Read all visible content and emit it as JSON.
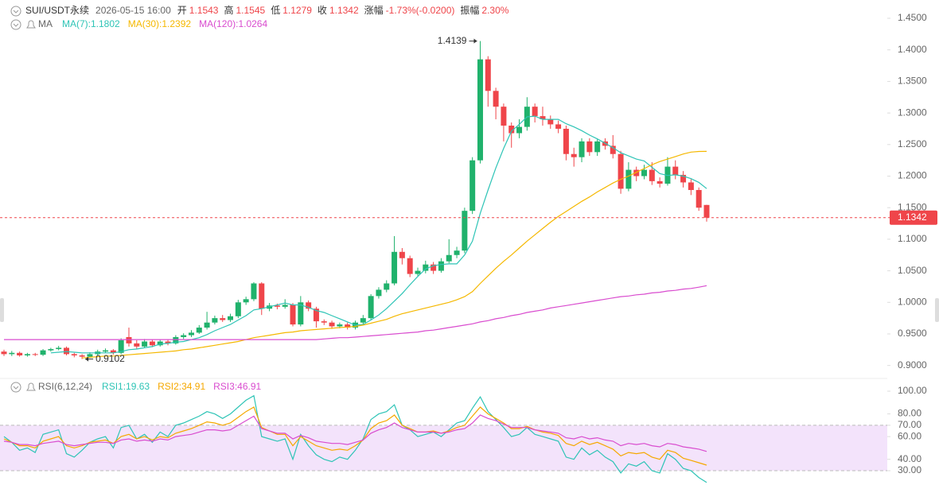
{
  "header": {
    "symbol": "SUI/USDT永续",
    "time": "2026-05-15 16:00",
    "fields": [
      {
        "label": "开",
        "value": "1.1543"
      },
      {
        "label": "高",
        "value": "1.1545"
      },
      {
        "label": "低",
        "value": "1.1279"
      },
      {
        "label": "收",
        "value": "1.1342"
      },
      {
        "label": "涨幅",
        "value": "-1.73%(-0.0200)"
      },
      {
        "label": "振幅",
        "value": "2.30%"
      }
    ]
  },
  "chart_data": [
    {
      "type": "candlestick",
      "indicator": "MA",
      "up_color": "#20b26c",
      "down_color": "#ef454a",
      "ylim": [
        0.887,
        1.479
      ],
      "yticks": [
        {
          "value": 0.9,
          "label": "0.9000"
        },
        {
          "value": 0.95,
          "label": "0.9500"
        },
        {
          "value": 1.0,
          "label": "1.0000"
        },
        {
          "value": 1.05,
          "label": "1.0500"
        },
        {
          "value": 1.1,
          "label": "1.1000"
        },
        {
          "value": 1.15,
          "label": "1.1500"
        },
        {
          "value": 1.2,
          "label": "1.2000"
        },
        {
          "value": 1.25,
          "label": "1.2500"
        },
        {
          "value": 1.3,
          "label": "1.3000"
        },
        {
          "value": 1.35,
          "label": "1.3500"
        },
        {
          "value": 1.4,
          "label": "1.4000"
        },
        {
          "value": 1.45,
          "label": "1.4500"
        }
      ],
      "current_price": 1.1342,
      "annotations": [
        1.4139,
        0.9102
      ],
      "candles": {
        "open": [
          0.922,
          0.918,
          0.92,
          0.916,
          0.918,
          0.917,
          0.924,
          0.926,
          0.928,
          0.918,
          0.916,
          0.914,
          0.918,
          0.922,
          0.924,
          0.92,
          0.945,
          0.935,
          0.93,
          0.938,
          0.932,
          0.938,
          0.935,
          0.945,
          0.948,
          0.952,
          0.96,
          0.968,
          0.975,
          0.972,
          0.978,
          1.0,
          1.005,
          1.03,
          0.99,
          0.995,
          0.993,
          0.996,
          0.965,
          1.0,
          0.99,
          0.97,
          0.968,
          0.962,
          0.965,
          0.96,
          0.968,
          0.975,
          1.01,
          1.02,
          1.03,
          1.08,
          1.07,
          1.045,
          1.05,
          1.06,
          1.05,
          1.065,
          1.075,
          1.082,
          1.145,
          1.225,
          1.385,
          1.335,
          1.31,
          1.28,
          1.268,
          1.278,
          1.31,
          1.295,
          1.29,
          1.282,
          1.275,
          1.235,
          1.23,
          1.255,
          1.238,
          1.255,
          1.248,
          1.235,
          1.18,
          1.21,
          1.2,
          1.21,
          1.192,
          1.188,
          1.215,
          1.202,
          1.19,
          1.178,
          1.1543
        ],
        "high": [
          0.925,
          0.923,
          0.922,
          0.92,
          0.92,
          0.926,
          0.928,
          0.931,
          0.93,
          0.92,
          0.918,
          0.921,
          0.925,
          0.927,
          0.926,
          0.943,
          0.96,
          0.94,
          0.942,
          0.941,
          0.941,
          0.941,
          0.948,
          0.951,
          0.956,
          0.964,
          0.985,
          0.979,
          0.98,
          0.982,
          1.004,
          1.009,
          1.032,
          1.032,
          0.999,
          0.998,
          1.005,
          0.999,
          1.01,
          1.003,
          0.993,
          0.973,
          0.971,
          0.968,
          0.968,
          0.971,
          0.98,
          1.013,
          1.024,
          1.035,
          1.105,
          1.086,
          1.074,
          1.055,
          1.066,
          1.064,
          1.07,
          1.1,
          1.088,
          1.15,
          1.23,
          1.4139,
          1.39,
          1.34,
          1.315,
          1.285,
          1.29,
          1.325,
          1.315,
          1.31,
          1.296,
          1.288,
          1.28,
          1.245,
          1.26,
          1.26,
          1.258,
          1.26,
          1.265,
          1.24,
          1.222,
          1.215,
          1.218,
          1.222,
          1.198,
          1.23,
          1.225,
          1.208,
          1.195,
          1.182,
          1.1545
        ],
        "low": [
          0.915,
          0.915,
          0.914,
          0.914,
          0.915,
          0.915,
          0.922,
          0.924,
          0.916,
          0.913,
          0.9102,
          0.912,
          0.916,
          0.92,
          0.917,
          0.918,
          0.93,
          0.926,
          0.928,
          0.929,
          0.93,
          0.932,
          0.933,
          0.942,
          0.945,
          0.95,
          0.957,
          0.965,
          0.969,
          0.969,
          0.975,
          0.996,
          1.002,
          0.98,
          0.986,
          0.989,
          0.99,
          0.962,
          0.962,
          0.986,
          0.96,
          0.964,
          0.958,
          0.959,
          0.957,
          0.957,
          0.965,
          0.972,
          1.006,
          1.016,
          1.027,
          1.06,
          1.04,
          1.042,
          1.046,
          1.045,
          1.047,
          1.062,
          1.07,
          1.078,
          1.14,
          1.22,
          1.31,
          1.29,
          1.255,
          1.245,
          1.26,
          1.272,
          1.285,
          1.28,
          1.275,
          1.268,
          1.225,
          1.215,
          1.222,
          1.232,
          1.232,
          1.242,
          1.228,
          1.172,
          1.176,
          1.192,
          1.195,
          1.186,
          1.182,
          1.185,
          1.195,
          1.182,
          1.17,
          1.145,
          1.1279
        ],
        "close": [
          0.918,
          0.92,
          0.916,
          0.918,
          0.917,
          0.924,
          0.926,
          0.928,
          0.918,
          0.916,
          0.914,
          0.918,
          0.922,
          0.924,
          0.92,
          0.94,
          0.935,
          0.93,
          0.938,
          0.932,
          0.938,
          0.935,
          0.945,
          0.948,
          0.952,
          0.96,
          0.968,
          0.975,
          0.972,
          0.978,
          1.0,
          1.005,
          1.03,
          0.99,
          0.995,
          0.993,
          0.996,
          0.965,
          1.0,
          0.99,
          0.97,
          0.968,
          0.962,
          0.965,
          0.96,
          0.968,
          0.975,
          1.01,
          1.02,
          1.03,
          1.08,
          1.07,
          1.045,
          1.05,
          1.06,
          1.05,
          1.065,
          1.075,
          1.082,
          1.145,
          1.225,
          1.385,
          1.335,
          1.31,
          1.28,
          1.268,
          1.278,
          1.31,
          1.295,
          1.29,
          1.282,
          1.275,
          1.235,
          1.23,
          1.255,
          1.238,
          1.255,
          1.248,
          1.235,
          1.18,
          1.21,
          1.2,
          1.21,
          1.192,
          1.188,
          1.215,
          1.202,
          1.19,
          1.178,
          1.15,
          1.1342
        ]
      },
      "series": [
        {
          "name": "MA(7):1.1802",
          "color": "#2ec4b6",
          "values": [
            null,
            null,
            null,
            null,
            null,
            null,
            0.92,
            0.921,
            0.922,
            0.921,
            0.92,
            0.92,
            0.92,
            0.92,
            0.92,
            0.922,
            0.925,
            0.926,
            0.928,
            0.93,
            0.934,
            0.935,
            0.937,
            0.938,
            0.941,
            0.944,
            0.949,
            0.955,
            0.96,
            0.965,
            0.972,
            0.979,
            0.988,
            0.99,
            0.993,
            0.996,
            0.999,
            0.996,
            0.996,
            0.992,
            0.987,
            0.984,
            0.979,
            0.974,
            0.969,
            0.964,
            0.965,
            0.972,
            0.98,
            0.99,
            1.002,
            1.014,
            1.028,
            1.041,
            1.053,
            1.058,
            1.06,
            1.061,
            1.061,
            1.075,
            1.097,
            1.141,
            1.178,
            1.213,
            1.244,
            1.271,
            1.282,
            1.294,
            1.295,
            1.29,
            1.29,
            1.29,
            1.283,
            1.278,
            1.272,
            1.265,
            1.259,
            1.252,
            1.245,
            1.237,
            1.232,
            1.227,
            1.224,
            1.214,
            1.204,
            1.201,
            1.202,
            1.2,
            1.196,
            1.19,
            1.1802
          ]
        },
        {
          "name": "MA(30):1.2392",
          "color": "#f5b800",
          "values": [
            null,
            null,
            null,
            null,
            null,
            null,
            null,
            null,
            null,
            null,
            0.912,
            0.913,
            0.914,
            0.915,
            0.915,
            0.916,
            0.917,
            0.918,
            0.919,
            0.92,
            0.921,
            0.922,
            0.923,
            0.925,
            0.926,
            0.928,
            0.93,
            0.932,
            0.934,
            0.936,
            0.938,
            0.941,
            0.944,
            0.946,
            0.948,
            0.95,
            0.952,
            0.953,
            0.955,
            0.956,
            0.957,
            0.958,
            0.959,
            0.96,
            0.961,
            0.962,
            0.964,
            0.967,
            0.97,
            0.973,
            0.978,
            0.982,
            0.985,
            0.988,
            0.991,
            0.994,
            0.997,
            1.0,
            1.004,
            1.009,
            1.017,
            1.03,
            1.042,
            1.054,
            1.065,
            1.075,
            1.086,
            1.097,
            1.107,
            1.117,
            1.127,
            1.136,
            1.144,
            1.152,
            1.16,
            1.167,
            1.175,
            1.182,
            1.189,
            1.195,
            1.2,
            1.206,
            1.212,
            1.218,
            1.223,
            1.227,
            1.231,
            1.235,
            1.238,
            1.239,
            1.2392
          ]
        },
        {
          "name": "MA(120):1.0264",
          "color": "#d94ccf",
          "values": [
            0.941,
            0.941,
            0.941,
            0.941,
            0.941,
            0.941,
            0.941,
            0.941,
            0.941,
            0.941,
            0.941,
            0.941,
            0.941,
            0.941,
            0.941,
            0.941,
            0.941,
            0.941,
            0.941,
            0.941,
            0.941,
            0.941,
            0.941,
            0.941,
            0.941,
            0.941,
            0.941,
            0.941,
            0.941,
            0.941,
            0.941,
            0.941,
            0.941,
            0.941,
            0.941,
            0.941,
            0.941,
            0.941,
            0.941,
            0.941,
            0.941,
            0.942,
            0.943,
            0.944,
            0.944,
            0.945,
            0.946,
            0.947,
            0.948,
            0.949,
            0.95,
            0.951,
            0.952,
            0.953,
            0.955,
            0.956,
            0.958,
            0.96,
            0.962,
            0.964,
            0.966,
            0.969,
            0.971,
            0.974,
            0.976,
            0.979,
            0.981,
            0.984,
            0.986,
            0.988,
            0.991,
            0.993,
            0.995,
            0.997,
            0.999,
            1.001,
            1.003,
            1.005,
            1.007,
            1.009,
            1.01,
            1.012,
            1.013,
            1.015,
            1.016,
            1.018,
            1.019,
            1.021,
            1.022,
            1.024,
            1.0264
          ]
        }
      ]
    },
    {
      "type": "line",
      "indicator": "RSI(6,12,24)",
      "ylim": [
        17.4,
        108.4
      ],
      "band": [
        30,
        70
      ],
      "band_color": "#f3e3fb",
      "yticks": [
        {
          "value": 30,
          "label": "30.00"
        },
        {
          "value": 40,
          "label": "40.00"
        },
        {
          "value": 60,
          "label": "60.00"
        },
        {
          "value": 70,
          "label": "70.00"
        },
        {
          "value": 80,
          "label": "80.00"
        },
        {
          "value": 100,
          "label": "100.00"
        }
      ],
      "series": [
        {
          "name": "RSI1:19.63",
          "color": "#2ec4b6",
          "values": [
            60,
            55,
            48,
            50,
            46,
            62,
            64,
            66,
            45,
            42,
            48,
            55,
            58,
            60,
            50,
            68,
            70,
            58,
            62,
            55,
            64,
            60,
            70,
            72,
            75,
            78,
            82,
            80,
            76,
            80,
            86,
            92,
            96,
            60,
            58,
            56,
            58,
            40,
            62,
            52,
            44,
            40,
            38,
            42,
            40,
            48,
            58,
            75,
            80,
            82,
            88,
            70,
            66,
            60,
            62,
            64,
            60,
            66,
            72,
            74,
            85,
            95,
            82,
            75,
            68,
            60,
            62,
            68,
            62,
            60,
            58,
            56,
            42,
            40,
            50,
            44,
            48,
            42,
            38,
            28,
            36,
            34,
            38,
            30,
            28,
            45,
            40,
            32,
            30,
            24,
            19.63
          ]
        },
        {
          "name": "RSI2:34.91",
          "color": "#f5a800",
          "values": [
            58,
            55,
            52,
            52,
            50,
            56,
            58,
            60,
            52,
            50,
            52,
            55,
            56,
            57,
            54,
            60,
            62,
            58,
            60,
            57,
            60,
            59,
            63,
            65,
            67,
            70,
            73,
            72,
            70,
            72,
            77,
            82,
            86,
            68,
            65,
            62,
            62,
            52,
            60,
            56,
            52,
            50,
            48,
            49,
            48,
            52,
            57,
            67,
            72,
            74,
            79,
            70,
            67,
            64,
            64,
            65,
            63,
            65,
            68,
            70,
            78,
            86,
            80,
            76,
            72,
            67,
            67,
            69,
            66,
            64,
            63,
            61,
            54,
            52,
            56,
            53,
            55,
            52,
            49,
            43,
            46,
            45,
            46,
            42,
            40,
            48,
            46,
            41,
            39,
            37,
            34.91
          ]
        },
        {
          "name": "RSI3:46.91",
          "color": "#d94ccf",
          "values": [
            56,
            55,
            53,
            53,
            52,
            54,
            55,
            56,
            53,
            52,
            53,
            54,
            55,
            55,
            54,
            57,
            58,
            56,
            57,
            56,
            58,
            57,
            60,
            61,
            62,
            64,
            66,
            66,
            65,
            66,
            70,
            74,
            78,
            67,
            65,
            63,
            63,
            58,
            61,
            59,
            56,
            55,
            54,
            54,
            53,
            55,
            57,
            63,
            66,
            68,
            72,
            68,
            66,
            64,
            64,
            64,
            63,
            64,
            66,
            67,
            72,
            79,
            76,
            74,
            71,
            68,
            68,
            68,
            66,
            65,
            64,
            63,
            59,
            58,
            60,
            58,
            59,
            57,
            56,
            52,
            54,
            53,
            54,
            52,
            51,
            54,
            53,
            51,
            50,
            49,
            46.91
          ]
        }
      ]
    }
  ]
}
